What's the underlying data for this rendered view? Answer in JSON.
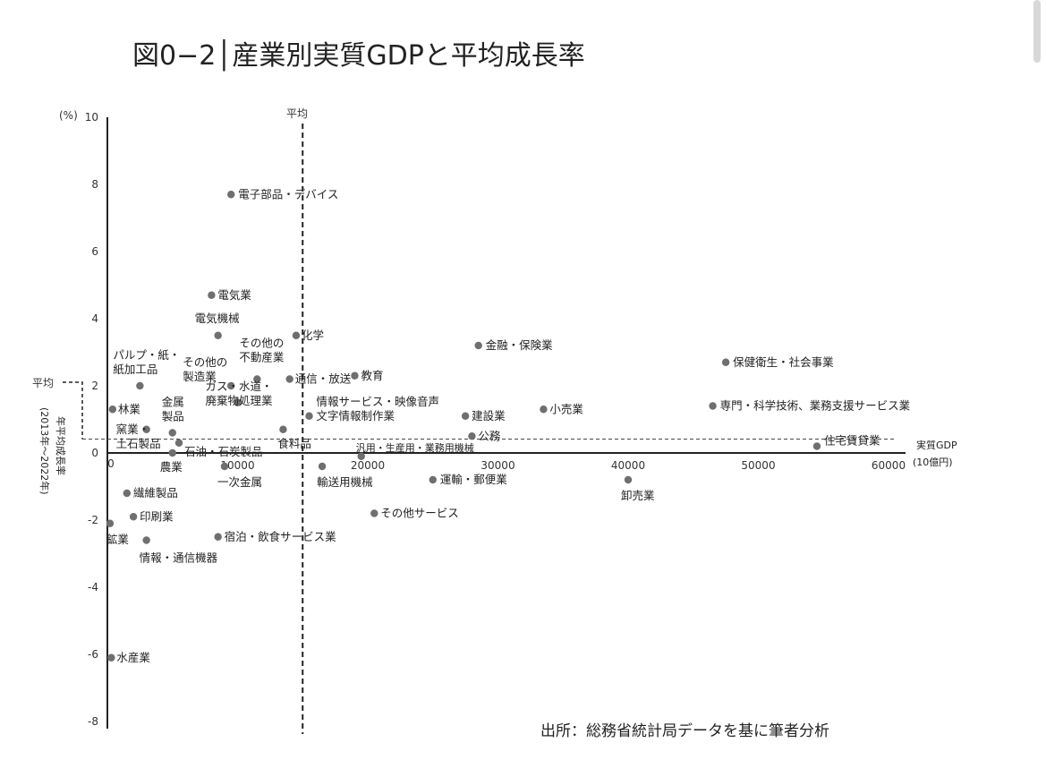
{
  "chart_data": {
    "type": "scatter",
    "title": "図0−2│産業別実質GDPと平均成長率",
    "xlabel": "実質GDP",
    "xunit": "(10億円)",
    "ylabel": "年平均成長率",
    "ylabel_sub": "(2013年〜2022年)",
    "yunit": "(%)",
    "xlim": [
      0,
      62000
    ],
    "ylim": [
      -8,
      10
    ],
    "x_ticks": [
      0,
      10000,
      20000,
      30000,
      40000,
      50000,
      60000
    ],
    "y_ticks": [
      10,
      8,
      6,
      4,
      2,
      0,
      -2,
      -4,
      -6,
      -8
    ],
    "average_x": 15000,
    "average_y": 0.6,
    "average_x_label": "平均",
    "average_y_label": "平均",
    "source": "出所：総務省統計局データを基に筆者分析",
    "points": [
      {
        "label": "電子部品・デバイス",
        "x": 9500,
        "y": 7.7
      },
      {
        "label": "電気業",
        "x": 8000,
        "y": 4.7
      },
      {
        "label": "電気機械",
        "x": 8500,
        "y": 3.5
      },
      {
        "label": "化学",
        "x": 14500,
        "y": 3.5
      },
      {
        "label": "金融・保険業",
        "x": 28500,
        "y": 3.2
      },
      {
        "label": "保健衛生・社会事業",
        "x": 47500,
        "y": 2.7
      },
      {
        "label": "パルプ・紙・紙加工品",
        "x": 2500,
        "y": 2.0
      },
      {
        "label": "その他の製造業",
        "x": 9500,
        "y": 2.0
      },
      {
        "label": "その他の不動産業",
        "x": 11500,
        "y": 2.2
      },
      {
        "label": "通信・放送",
        "x": 14000,
        "y": 2.2
      },
      {
        "label": "教育",
        "x": 19000,
        "y": 2.3
      },
      {
        "label": "情報サービス・映像音声文字情報制作業",
        "x": 15500,
        "y": 1.1
      },
      {
        "label": "建設業",
        "x": 27500,
        "y": 1.1
      },
      {
        "label": "小売業",
        "x": 33500,
        "y": 1.3
      },
      {
        "label": "専門・科学技術、業務支援サービス業",
        "x": 46500,
        "y": 1.4
      },
      {
        "label": "林業",
        "x": 400,
        "y": 1.3
      },
      {
        "label": "金属製品",
        "x": 5000,
        "y": 0.6
      },
      {
        "label": "ガス・水道・廃棄物処理業",
        "x": 10000,
        "y": 1.5
      },
      {
        "label": "窯業・土石製品",
        "x": 3000,
        "y": 0.7
      },
      {
        "label": "石油・石炭製品",
        "x": 5500,
        "y": 0.3
      },
      {
        "label": "食料品",
        "x": 13500,
        "y": 0.7
      },
      {
        "label": "公務",
        "x": 28000,
        "y": 0.5
      },
      {
        "label": "住宅賃貸業",
        "x": 54500,
        "y": 0.2
      },
      {
        "label": "汎用・生産用・業務用機械",
        "x": 19500,
        "y": -0.1
      },
      {
        "label": "農業",
        "x": 5000,
        "y": 0.0
      },
      {
        "label": "一次金属",
        "x": 9000,
        "y": -0.4
      },
      {
        "label": "輸送用機械",
        "x": 16500,
        "y": -0.4
      },
      {
        "label": "運輸・郵便業",
        "x": 25000,
        "y": -0.8
      },
      {
        "label": "卸売業",
        "x": 40000,
        "y": -0.8
      },
      {
        "label": "繊維製品",
        "x": 1500,
        "y": -1.2
      },
      {
        "label": "その他サービス",
        "x": 20500,
        "y": -1.8
      },
      {
        "label": "印刷業",
        "x": 2000,
        "y": -1.9
      },
      {
        "label": "鉱業",
        "x": 200,
        "y": -2.1
      },
      {
        "label": "情報・通信機器",
        "x": 3000,
        "y": -2.6
      },
      {
        "label": "宿泊・飲食サービス業",
        "x": 8500,
        "y": -2.5
      },
      {
        "label": "水産業",
        "x": 300,
        "y": -6.1
      }
    ]
  }
}
